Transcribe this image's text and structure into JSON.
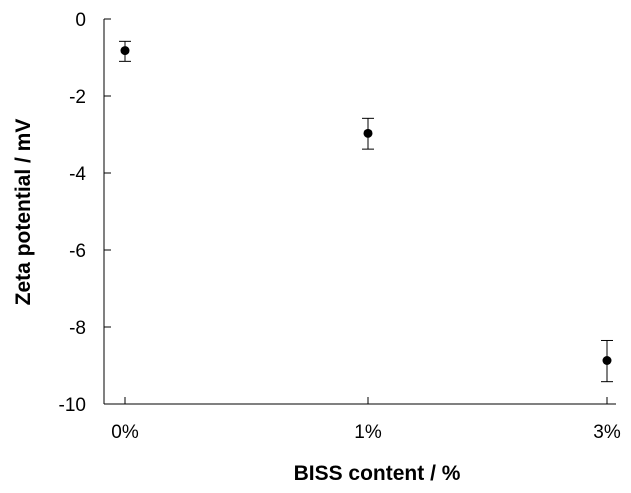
{
  "chart_data": {
    "type": "scatter",
    "title": "",
    "xlabel": "BISS content / %",
    "ylabel": "Zeta potential / mV",
    "categories": [
      "0%",
      "1%",
      "3%"
    ],
    "ylim": [
      -10,
      0
    ],
    "yticks": [
      0,
      -2,
      -4,
      -6,
      -8,
      -10
    ],
    "grid": false,
    "legend": "none",
    "points": [
      {
        "x": "0%",
        "y": -0.82,
        "err_low": -1.1,
        "err_high": -0.58
      },
      {
        "x": "1%",
        "y": -2.97,
        "err_low": -3.38,
        "err_high": -2.58
      },
      {
        "x": "3%",
        "y": -8.87,
        "err_low": -9.42,
        "err_high": -8.35
      }
    ],
    "colors": {
      "marker": "#000000",
      "axis": "#000000"
    }
  }
}
